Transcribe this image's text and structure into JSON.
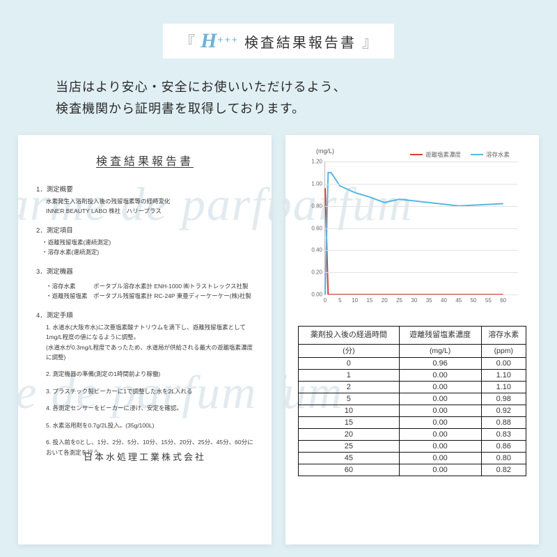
{
  "header": {
    "script": "H",
    "plus": "+++",
    "title_jp": "検査結果報告書"
  },
  "subtitle_line1": "当店はより安心・安全にお使いいただけるよう、",
  "subtitle_line2": "検査機関から証明書を取得しております。",
  "watermark_text": "larme de parfum",
  "report": {
    "title": "検査結果報告書",
    "sec1_title": "1．測定概要",
    "sec1_body1": "水素発生入浴剤投入後の残留塩素等の経時変化",
    "sec1_body2": "INNER BEAUTY LABO 株社　ハリープラス",
    "sec2_title": "2．測定項目",
    "sec2_b1": "・遊離残留塩素(連続測定)",
    "sec2_b2": "・溶存水素(連続測定)",
    "sec3_title": "3．測定機器",
    "sec3_k1": "・溶存水素",
    "sec3_v1": "ポータブル溶存水素計 ENH-1000 ㈱トラストレックス社製",
    "sec3_k2": "・遊離残留塩素",
    "sec3_v2": "ポータブル残留塩素計 RC-24P 東亜ディーケーケー(株)社製",
    "sec4_title": "4．測定手順",
    "sec4_1": "1. 水道水(大阪市水)に次亜塩素酸ナトリウムを滴下し、遊離残留塩素として1mg/L程度の値になるように調整。",
    "sec4_1b": "(水道水が0.3mg/L程度であったため、水道局が供給される最大の遊離塩素濃度に調整)",
    "sec4_2": "2. 測定機器の準備(測定の1時間前より稼働)",
    "sec4_3": "3. プラスチック製ビーカーに1で調整した水を2L入れる",
    "sec4_4": "4. 各測定センサーをビーカーに浸け、安定を確認。",
    "sec4_5": "5. 水素浴用剤を0.7g/2L投入。(35g/100L)",
    "sec4_6": "6. 投入前を0とし、1分、2分、5分、10分、15分、20分、25分、45分、60分において各測定を行う。",
    "footer": "日本水処理工業株式会社"
  },
  "chart": {
    "type": "line",
    "ylabel": "(mg/L)",
    "ylim": [
      0,
      1.2
    ],
    "ytick_step": 0.2,
    "xlim": [
      0,
      65
    ],
    "xtick_step": 5,
    "background_color": "#ffffff",
    "grid_color": "#e2e2e2",
    "axis_color": "#bbbbbb",
    "series": [
      {
        "name": "遊離塩素濃度",
        "color": "#e23b2e",
        "width": 2,
        "x": [
          0,
          1,
          2,
          5,
          10,
          15,
          20,
          25,
          45,
          60
        ],
        "y": [
          0.96,
          0.0,
          0.0,
          0.0,
          0.0,
          0.0,
          0.0,
          0.0,
          0.0,
          0.0
        ]
      },
      {
        "name": "溶存水素",
        "color": "#54b7e3",
        "width": 2,
        "x": [
          0,
          1,
          2,
          5,
          10,
          15,
          20,
          25,
          45,
          60
        ],
        "y": [
          0.0,
          1.1,
          1.1,
          0.98,
          0.92,
          0.88,
          0.83,
          0.86,
          0.8,
          0.82
        ]
      }
    ],
    "yticks": [
      "0.00",
      "0.20",
      "0.40",
      "0.60",
      "0.80",
      "1.00",
      "1.20"
    ],
    "xticks": [
      "0",
      "5",
      "10",
      "15",
      "20",
      "25",
      "30",
      "35",
      "40",
      "45",
      "50",
      "55",
      "60"
    ]
  },
  "table": {
    "headers": [
      "薬剤投入後の経過時間",
      "遊離残留塩素濃度",
      "溶存水素"
    ],
    "units": [
      "(分)",
      "(mg/L)",
      "(ppm)"
    ],
    "rows": [
      [
        "0",
        "0.96",
        "0.00"
      ],
      [
        "1",
        "0.00",
        "1.10"
      ],
      [
        "2",
        "0.00",
        "1.10"
      ],
      [
        "5",
        "0.00",
        "0.98"
      ],
      [
        "10",
        "0.00",
        "0.92"
      ],
      [
        "15",
        "0.00",
        "0.88"
      ],
      [
        "20",
        "0.00",
        "0.83"
      ],
      [
        "25",
        "0.00",
        "0.86"
      ],
      [
        "45",
        "0.00",
        "0.80"
      ],
      [
        "60",
        "0.00",
        "0.82"
      ]
    ]
  }
}
